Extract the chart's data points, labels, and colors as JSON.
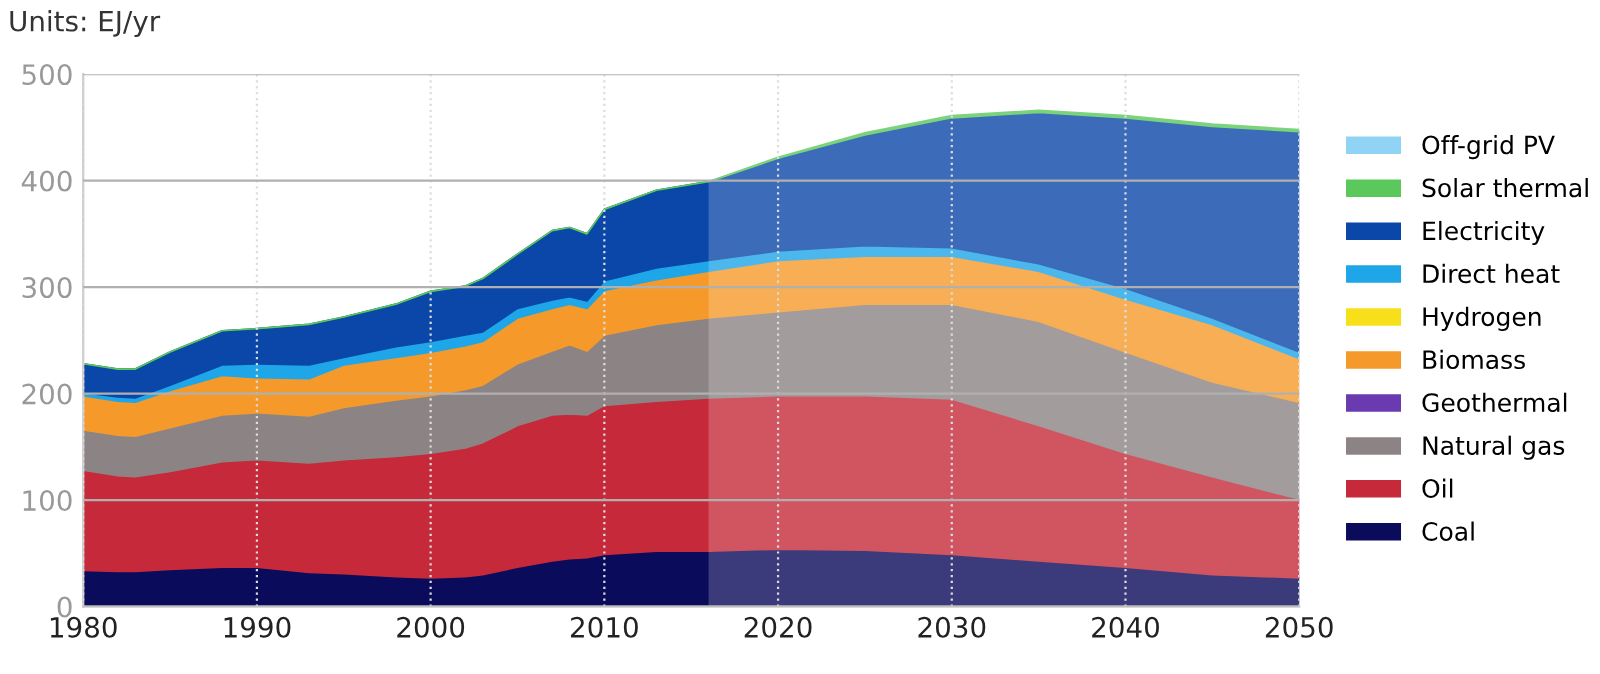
{
  "chart_data": {
    "type": "area",
    "stacked": true,
    "ylabel": "Units: EJ/yr",
    "x": [
      1980,
      1982,
      1983,
      1985,
      1988,
      1990,
      1993,
      1995,
      1998,
      2000,
      2002,
      2003,
      2005,
      2007,
      2008,
      2009,
      2010,
      2013,
      2016,
      2020,
      2025,
      2030,
      2035,
      2040,
      2045,
      2050
    ],
    "series": [
      {
        "name": "Coal",
        "color": "#0b0b5c",
        "values": [
          34,
          33,
          33,
          35,
          37,
          37,
          32,
          31,
          28,
          27,
          28,
          30,
          37,
          43,
          45,
          46,
          49,
          52,
          52,
          54,
          53,
          49,
          43,
          37,
          30,
          27
        ]
      },
      {
        "name": "Oil",
        "color": "#c62a3a",
        "values": [
          94,
          90,
          89,
          92,
          99,
          101,
          103,
          107,
          113,
          117,
          121,
          124,
          133,
          137,
          136,
          134,
          140,
          141,
          144,
          144,
          145,
          146,
          127,
          107,
          92,
          74
        ]
      },
      {
        "name": "Natural gas",
        "color": "#8c8484",
        "values": [
          38,
          38,
          38,
          41,
          44,
          44,
          44,
          49,
          53,
          54,
          55,
          54,
          58,
          60,
          65,
          60,
          66,
          72,
          75,
          79,
          86,
          89,
          98,
          95,
          89,
          91
        ]
      },
      {
        "name": "Geothermal",
        "color": "#6a3ab0",
        "values": [
          null,
          null,
          null,
          null,
          null,
          null,
          null,
          null,
          null,
          null,
          null,
          null,
          null,
          null,
          null,
          null,
          null,
          null,
          null,
          null,
          null,
          null,
          null,
          null,
          null,
          null
        ]
      },
      {
        "name": "Biomass",
        "color": "#f59a2a",
        "values": [
          32,
          32,
          32,
          35,
          37,
          33,
          35,
          40,
          40,
          41,
          41,
          41,
          43,
          40,
          38,
          40,
          42,
          42,
          44,
          48,
          45,
          45,
          47,
          50,
          54,
          41
        ]
      },
      {
        "name": "Hydrogen",
        "color": "#f7e01a",
        "values": [
          null,
          null,
          null,
          null,
          null,
          null,
          null,
          null,
          null,
          null,
          null,
          null,
          null,
          null,
          null,
          null,
          null,
          null,
          null,
          null,
          null,
          null,
          null,
          null,
          null,
          null
        ]
      },
      {
        "name": "Direct heat",
        "color": "#1ea6e8",
        "values": [
          3,
          4,
          4,
          5,
          10,
          13,
          13,
          7,
          10,
          10,
          10,
          9,
          9,
          8,
          7,
          7,
          9,
          11,
          10,
          9,
          10,
          8,
          7,
          10,
          6,
          6
        ]
      },
      {
        "name": "Electricity",
        "color": "#0a47a8",
        "values": [
          27,
          26,
          27,
          31,
          32,
          33,
          38,
          38,
          40,
          47,
          46,
          50,
          51,
          65,
          65,
          63,
          67,
          73,
          74,
          87,
          104,
          122,
          142,
          160,
          180,
          207
        ]
      },
      {
        "name": "Solar thermal",
        "color": "#5ac85a",
        "values": [
          0,
          0,
          0,
          0,
          0,
          0,
          0,
          0,
          0,
          0,
          0,
          0,
          0,
          0,
          0,
          0,
          0,
          0,
          0,
          1,
          2,
          2,
          2,
          2,
          2,
          2
        ]
      },
      {
        "name": "Off-grid PV",
        "color": "#8fd3f5",
        "values": [
          null,
          null,
          null,
          null,
          null,
          null,
          null,
          null,
          null,
          null,
          null,
          null,
          null,
          null,
          null,
          null,
          null,
          null,
          null,
          null,
          null,
          null,
          null,
          null,
          null,
          null
        ]
      }
    ],
    "xlim": [
      1980,
      2050
    ],
    "xticks": [
      1980,
      1990,
      2000,
      2010,
      2020,
      2030,
      2040,
      2050
    ],
    "ylim": [
      0,
      500
    ],
    "yticks": [
      0,
      100,
      200,
      300,
      400,
      500
    ],
    "bands": [
      {
        "axis": "x",
        "from": 2016,
        "to": 2050,
        "color": "#ffffff"
      }
    ],
    "grid": true,
    "legend": "right"
  }
}
